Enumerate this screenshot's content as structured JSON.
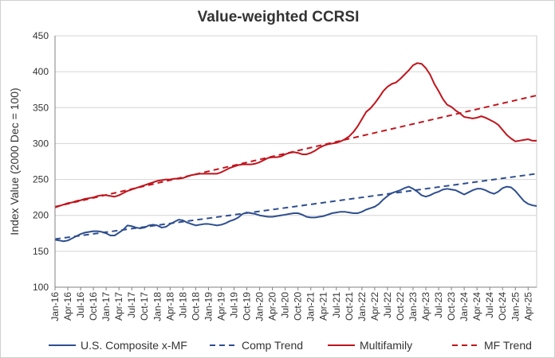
{
  "chart_data": {
    "type": "line",
    "title": "Value-weighted  CCRSI",
    "xlabel": "",
    "ylabel": "Index  Value (2000 Dec = 100)",
    "ylim": [
      100,
      450
    ],
    "yticks": [
      100,
      150,
      200,
      250,
      300,
      350,
      400,
      450
    ],
    "xticks": [
      "Jan-16",
      "Apr-16",
      "Jul-16",
      "Oct-16",
      "Jan-17",
      "Apr-17",
      "Jul-17",
      "Oct-17",
      "Jan-18",
      "Apr-18",
      "Jul-18",
      "Oct-18",
      "Jan-19",
      "Apr-19",
      "Jul-19",
      "Oct-19",
      "Jan-20",
      "Apr-20",
      "Jul-20",
      "Oct-20",
      "Jan-21",
      "Apr-21",
      "Jul-21",
      "Oct-21",
      "Jan-22",
      "Apr-22",
      "Jul-22",
      "Oct-22",
      "Jan-23",
      "Apr-23",
      "Jul-23",
      "Oct-23",
      "Jan-24",
      "Apr-24",
      "Jul-24",
      "Oct-24",
      "Jan-25",
      "Apr-25"
    ],
    "x_months": {
      "start": "Jan-16",
      "count": 114
    },
    "grid": true,
    "legend_position": "bottom",
    "series": [
      {
        "name": "U.S. Composite x-MF",
        "color": "#2e4e8f",
        "style": "solid",
        "points": [
          [
            0,
            166
          ],
          [
            1,
            165
          ],
          [
            2,
            164
          ],
          [
            3,
            165
          ],
          [
            4,
            168
          ],
          [
            5,
            171
          ],
          [
            6,
            174
          ],
          [
            7,
            176
          ],
          [
            8,
            177
          ],
          [
            9,
            178
          ],
          [
            10,
            178
          ],
          [
            11,
            177
          ],
          [
            12,
            175
          ],
          [
            13,
            172
          ],
          [
            14,
            172
          ],
          [
            15,
            176
          ],
          [
            16,
            180
          ],
          [
            17,
            186
          ],
          [
            18,
            185
          ],
          [
            19,
            183
          ],
          [
            20,
            182
          ],
          [
            21,
            183
          ],
          [
            22,
            186
          ],
          [
            23,
            187
          ],
          [
            24,
            186
          ],
          [
            25,
            183
          ],
          [
            26,
            184
          ],
          [
            27,
            188
          ],
          [
            28,
            191
          ],
          [
            29,
            194
          ],
          [
            30,
            193
          ],
          [
            31,
            190
          ],
          [
            32,
            188
          ],
          [
            33,
            186
          ],
          [
            34,
            187
          ],
          [
            35,
            188
          ],
          [
            36,
            188
          ],
          [
            37,
            187
          ],
          [
            38,
            186
          ],
          [
            39,
            187
          ],
          [
            40,
            189
          ],
          [
            41,
            192
          ],
          [
            42,
            194
          ],
          [
            43,
            197
          ],
          [
            44,
            202
          ],
          [
            45,
            204
          ],
          [
            46,
            203
          ],
          [
            47,
            202
          ],
          [
            48,
            200
          ],
          [
            49,
            199
          ],
          [
            50,
            198
          ],
          [
            51,
            198
          ],
          [
            52,
            199
          ],
          [
            53,
            200
          ],
          [
            54,
            201
          ],
          [
            55,
            202
          ],
          [
            56,
            203
          ],
          [
            57,
            203
          ],
          [
            58,
            201
          ],
          [
            59,
            198
          ],
          [
            60,
            197
          ],
          [
            61,
            197
          ],
          [
            62,
            198
          ],
          [
            63,
            199
          ],
          [
            64,
            201
          ],
          [
            65,
            203
          ],
          [
            66,
            204
          ],
          [
            67,
            205
          ],
          [
            68,
            205
          ],
          [
            69,
            204
          ],
          [
            70,
            203
          ],
          [
            71,
            203
          ],
          [
            72,
            205
          ],
          [
            73,
            208
          ],
          [
            74,
            210
          ],
          [
            75,
            212
          ],
          [
            76,
            216
          ],
          [
            77,
            222
          ],
          [
            78,
            227
          ],
          [
            79,
            231
          ],
          [
            80,
            233
          ],
          [
            81,
            235
          ],
          [
            82,
            238
          ],
          [
            83,
            240
          ],
          [
            84,
            237
          ],
          [
            85,
            233
          ],
          [
            86,
            228
          ],
          [
            87,
            226
          ],
          [
            88,
            228
          ],
          [
            89,
            231
          ],
          [
            90,
            233
          ],
          [
            91,
            236
          ],
          [
            92,
            237
          ],
          [
            93,
            236
          ],
          [
            94,
            235
          ],
          [
            95,
            232
          ],
          [
            96,
            229
          ],
          [
            97,
            232
          ],
          [
            98,
            235
          ],
          [
            99,
            237
          ],
          [
            100,
            237
          ],
          [
            101,
            235
          ],
          [
            102,
            232
          ],
          [
            103,
            230
          ],
          [
            104,
            233
          ],
          [
            105,
            238
          ],
          [
            106,
            240
          ],
          [
            107,
            239
          ],
          [
            108,
            234
          ],
          [
            109,
            227
          ],
          [
            110,
            220
          ],
          [
            111,
            216
          ],
          [
            112,
            214
          ],
          [
            113,
            213
          ]
        ]
      },
      {
        "name": "Comp Trend",
        "color": "#2e4e8f",
        "style": "dashed",
        "points": [
          [
            0,
            167
          ],
          [
            113,
            258
          ]
        ]
      },
      {
        "name": "Multifamily",
        "color": "#c0141c",
        "style": "solid",
        "points": [
          [
            0,
            211
          ],
          [
            1,
            213
          ],
          [
            2,
            215
          ],
          [
            3,
            217
          ],
          [
            4,
            218
          ],
          [
            5,
            220
          ],
          [
            6,
            221
          ],
          [
            7,
            223
          ],
          [
            8,
            224
          ],
          [
            9,
            225
          ],
          [
            10,
            227
          ],
          [
            11,
            228
          ],
          [
            12,
            228
          ],
          [
            13,
            227
          ],
          [
            14,
            226
          ],
          [
            15,
            228
          ],
          [
            16,
            231
          ],
          [
            17,
            234
          ],
          [
            18,
            236
          ],
          [
            19,
            238
          ],
          [
            20,
            240
          ],
          [
            21,
            242
          ],
          [
            22,
            244
          ],
          [
            23,
            246
          ],
          [
            24,
            248
          ],
          [
            25,
            249
          ],
          [
            26,
            250
          ],
          [
            27,
            250
          ],
          [
            28,
            251
          ],
          [
            29,
            251
          ],
          [
            30,
            252
          ],
          [
            31,
            254
          ],
          [
            32,
            256
          ],
          [
            33,
            257
          ],
          [
            34,
            258
          ],
          [
            35,
            258
          ],
          [
            36,
            258
          ],
          [
            37,
            258
          ],
          [
            38,
            258
          ],
          [
            39,
            260
          ],
          [
            40,
            263
          ],
          [
            41,
            266
          ],
          [
            42,
            268
          ],
          [
            43,
            270
          ],
          [
            44,
            271
          ],
          [
            45,
            271
          ],
          [
            46,
            271
          ],
          [
            47,
            272
          ],
          [
            48,
            274
          ],
          [
            49,
            277
          ],
          [
            50,
            280
          ],
          [
            51,
            281
          ],
          [
            52,
            281
          ],
          [
            53,
            282
          ],
          [
            54,
            285
          ],
          [
            55,
            287
          ],
          [
            56,
            288
          ],
          [
            57,
            287
          ],
          [
            58,
            285
          ],
          [
            59,
            285
          ],
          [
            60,
            287
          ],
          [
            61,
            290
          ],
          [
            62,
            294
          ],
          [
            63,
            297
          ],
          [
            64,
            299
          ],
          [
            65,
            300
          ],
          [
            66,
            301
          ],
          [
            67,
            303
          ],
          [
            68,
            306
          ],
          [
            69,
            310
          ],
          [
            70,
            316
          ],
          [
            71,
            324
          ],
          [
            72,
            334
          ],
          [
            73,
            344
          ],
          [
            74,
            349
          ],
          [
            75,
            356
          ],
          [
            76,
            364
          ],
          [
            77,
            373
          ],
          [
            78,
            379
          ],
          [
            79,
            383
          ],
          [
            80,
            385
          ],
          [
            81,
            390
          ],
          [
            82,
            396
          ],
          [
            83,
            402
          ],
          [
            84,
            409
          ],
          [
            85,
            412
          ],
          [
            86,
            411
          ],
          [
            87,
            405
          ],
          [
            88,
            396
          ],
          [
            89,
            383
          ],
          [
            90,
            373
          ],
          [
            91,
            362
          ],
          [
            92,
            354
          ],
          [
            93,
            351
          ],
          [
            94,
            346
          ],
          [
            95,
            342
          ],
          [
            96,
            337
          ],
          [
            97,
            336
          ],
          [
            98,
            335
          ],
          [
            99,
            336
          ],
          [
            100,
            338
          ],
          [
            101,
            336
          ],
          [
            102,
            333
          ],
          [
            103,
            330
          ],
          [
            104,
            326
          ],
          [
            105,
            319
          ],
          [
            106,
            312
          ],
          [
            107,
            307
          ],
          [
            108,
            303
          ],
          [
            109,
            304
          ],
          [
            110,
            305
          ],
          [
            111,
            306
          ],
          [
            112,
            304
          ],
          [
            113,
            304
          ]
        ]
      },
      {
        "name": "MF Trend",
        "color": "#c0141c",
        "style": "dashed",
        "points": [
          [
            0,
            212
          ],
          [
            113,
            367
          ]
        ]
      }
    ]
  }
}
